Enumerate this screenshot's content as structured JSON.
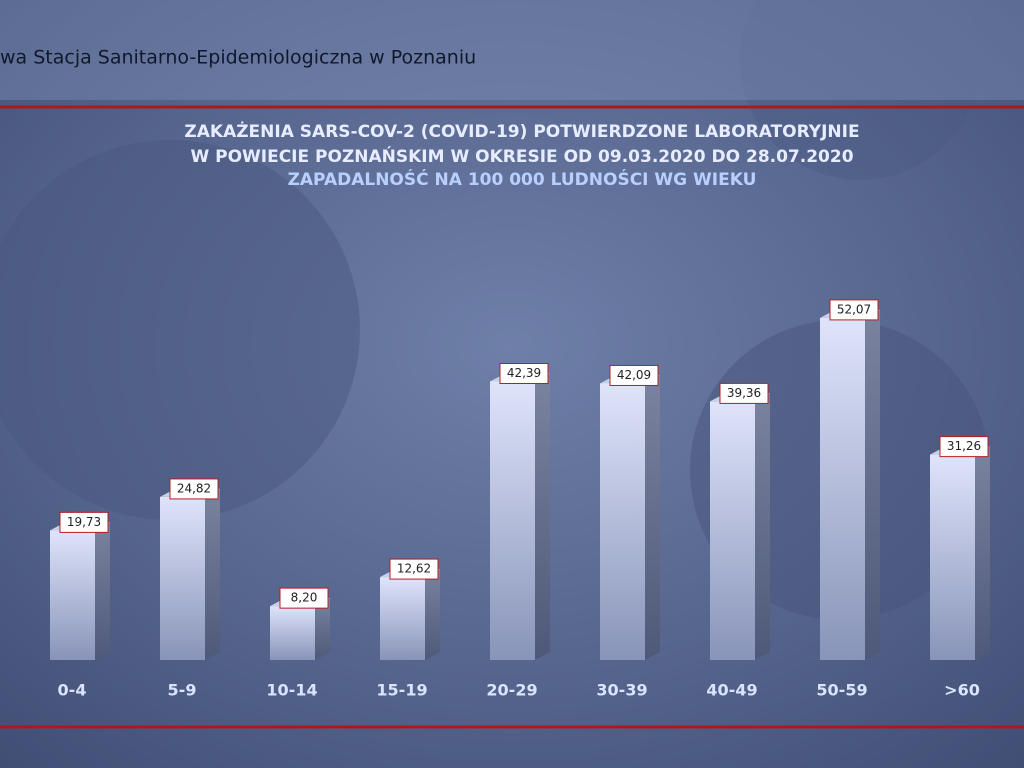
{
  "header": "wa Stacja Sanitarno-Epidemiologiczna w Poznaniu",
  "chart_data": {
    "type": "bar3d",
    "title_lines": [
      "ZAKAŻENIA SARS-COV-2 (COVID-19) POTWIERDZONE LABORATORYJNIE",
      "W POWIECIE POZNAŃSKIM W OKRESIE OD 09.03.2020 DO 28.07.2020"
    ],
    "subtitle": "ZAPADALNOŚĆ NA 100 000 LUDNOŚCI WG WIEKU",
    "categories": [
      "0-4",
      "5-9",
      "10-14",
      "15-19",
      "20-29",
      "30-39",
      "40-49",
      "50-59",
      ">60"
    ],
    "values": [
      19.73,
      24.82,
      8.2,
      12.62,
      42.39,
      42.09,
      39.36,
      52.07,
      31.26
    ],
    "value_labels": [
      "19,73",
      "24,82",
      "8,20",
      "12,62",
      "42,39",
      "42,09",
      "39,36",
      "52,07",
      "31,26"
    ],
    "color": "#b8c4ea"
  }
}
